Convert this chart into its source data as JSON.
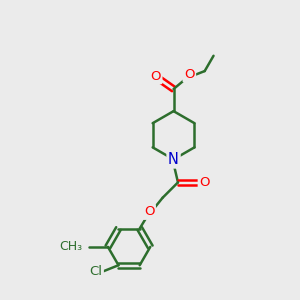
{
  "background_color": "#ebebeb",
  "bond_color": "#2d6e2d",
  "bond_width": 1.8,
  "atom_colors": {
    "O": "#ff0000",
    "N": "#0000cc",
    "Cl": "#2d6e2d",
    "C": "#2d6e2d"
  },
  "font_size": 9.5,
  "figsize": [
    3.0,
    3.0
  ],
  "dpi": 100
}
